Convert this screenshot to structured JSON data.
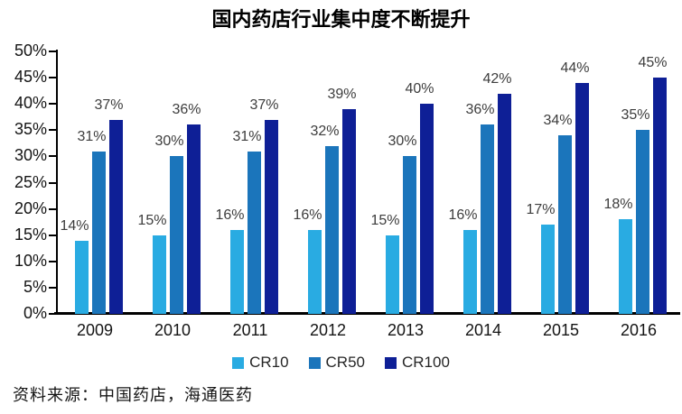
{
  "title": "国内药店行业集中度不断提升",
  "source": "资料来源：中国药店，海通医药",
  "colors": {
    "cr10": "#29ABE2",
    "cr50": "#1B75BB",
    "cr100": "#0E1F96",
    "axis": "#000000",
    "data_label": "#3d3d3d",
    "background": "#ffffff"
  },
  "chart_data": {
    "type": "bar",
    "title": "国内药店行业集中度不断提升",
    "categories": [
      "2009",
      "2010",
      "2011",
      "2012",
      "2013",
      "2014",
      "2015",
      "2016"
    ],
    "series": [
      {
        "name": "CR10",
        "color": "#29ABE2",
        "values": [
          14,
          15,
          16,
          16,
          15,
          16,
          17,
          18
        ]
      },
      {
        "name": "CR50",
        "color": "#1B75BB",
        "values": [
          31,
          30,
          31,
          32,
          30,
          36,
          34,
          35
        ]
      },
      {
        "name": "CR100",
        "color": "#0E1F96",
        "values": [
          37,
          36,
          37,
          39,
          40,
          42,
          44,
          45
        ]
      }
    ],
    "xlabel": "",
    "ylabel": "",
    "ylim": [
      0,
      50
    ],
    "ytick_step": 5,
    "ytick_labels": [
      "0%",
      "5%",
      "10%",
      "15%",
      "20%",
      "25%",
      "30%",
      "35%",
      "40%",
      "45%",
      "50%"
    ],
    "value_suffix": "%",
    "grid": false,
    "data_labels": true,
    "legend_position": "bottom-center"
  }
}
